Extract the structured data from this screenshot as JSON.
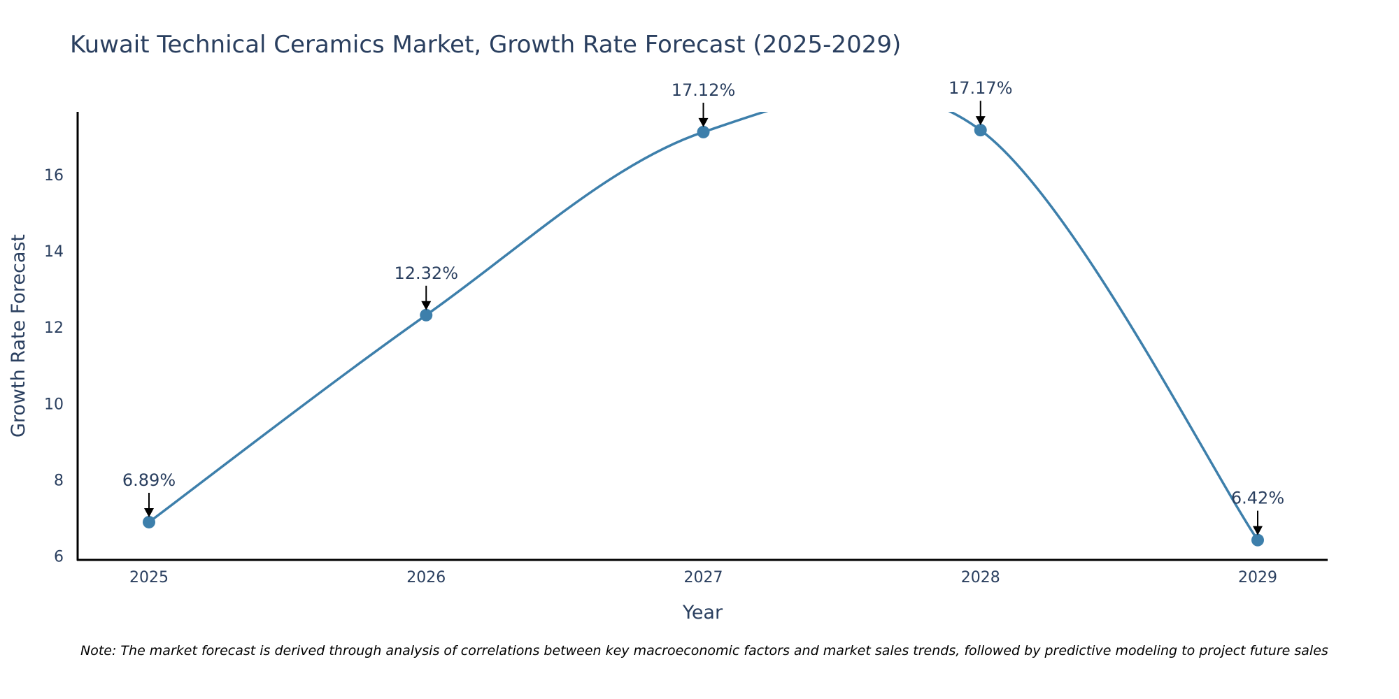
{
  "chart_data": {
    "type": "line",
    "title": "Kuwait Technical Ceramics Market, Growth Rate Forecast (2025-2029)",
    "xlabel": "Year",
    "ylabel": "Growth Rate Forecast",
    "categories": [
      "2025",
      "2026",
      "2027",
      "2028",
      "2029"
    ],
    "values": [
      6.89,
      12.32,
      17.12,
      17.17,
      6.42
    ],
    "data_labels": [
      "6.89%",
      "12.32%",
      "17.12%",
      "17.17%",
      "6.42%"
    ],
    "y_ticks": [
      6,
      8,
      10,
      12,
      14,
      16
    ],
    "ylim": [
      5.9,
      17.65
    ],
    "grid": false,
    "line_shape": "spline",
    "series_color": "#3d7fab",
    "note": "Note: The market forecast is derived through analysis of correlations between key macroeconomic factors and market sales trends, followed by predictive modeling to project future sales"
  }
}
